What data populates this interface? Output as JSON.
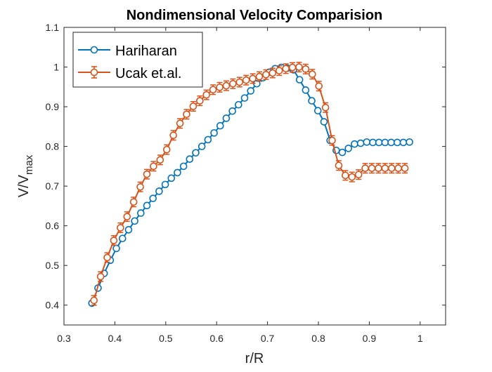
{
  "chart_data": {
    "type": "line",
    "title": "Nondimensional Velocity Comparision",
    "xlabel": "r/R",
    "ylabel_main": "V/V",
    "ylabel_sub": "max",
    "xlim": [
      0.3,
      1.05
    ],
    "ylim": [
      0.35,
      1.1
    ],
    "xticks": [
      0.3,
      0.4,
      0.5,
      0.6,
      0.7,
      0.8,
      0.9,
      1
    ],
    "xtick_labels": [
      "0.3",
      "0.4",
      "0.5",
      "0.6",
      "0.7",
      "0.8",
      "0.9",
      "1"
    ],
    "yticks": [
      0.4,
      0.5,
      0.6,
      0.7,
      0.8,
      0.9,
      1,
      1.1
    ],
    "ytick_labels": [
      "0.4",
      "0.5",
      "0.6",
      "0.7",
      "0.8",
      "0.9",
      "1",
      "1.1"
    ],
    "grid": false,
    "legend_position": "top-left",
    "series": [
      {
        "name": "Hariharan",
        "color": "#0072BD",
        "marker": "circle",
        "error_bars": false,
        "x": [
          0.355,
          0.367,
          0.379,
          0.391,
          0.403,
          0.415,
          0.427,
          0.439,
          0.451,
          0.463,
          0.475,
          0.487,
          0.499,
          0.511,
          0.523,
          0.535,
          0.547,
          0.559,
          0.571,
          0.583,
          0.595,
          0.607,
          0.619,
          0.631,
          0.643,
          0.655,
          0.667,
          0.679,
          0.691,
          0.703,
          0.715,
          0.727,
          0.739,
          0.751,
          0.763,
          0.775,
          0.787,
          0.799,
          0.811,
          0.823,
          0.835,
          0.847,
          0.859,
          0.871,
          0.883,
          0.895,
          0.907,
          0.919,
          0.931,
          0.943,
          0.955,
          0.967,
          0.979
        ],
        "y": [
          0.405,
          0.443,
          0.48,
          0.513,
          0.543,
          0.568,
          0.59,
          0.612,
          0.632,
          0.651,
          0.669,
          0.687,
          0.704,
          0.72,
          0.734,
          0.75,
          0.768,
          0.784,
          0.8,
          0.817,
          0.834,
          0.852,
          0.871,
          0.889,
          0.905,
          0.922,
          0.94,
          0.958,
          0.973,
          0.987,
          0.996,
          0.999,
          0.997,
          0.993,
          0.968,
          0.942,
          0.915,
          0.89,
          0.862,
          0.815,
          0.79,
          0.785,
          0.795,
          0.806,
          0.808,
          0.811,
          0.81,
          0.81,
          0.81,
          0.81,
          0.81,
          0.81,
          0.811
        ]
      },
      {
        "name": "Ucak et.al.",
        "color": "#D95319",
        "marker": "circle",
        "error_bars": true,
        "error": 0.012,
        "x": [
          0.359,
          0.372,
          0.385,
          0.398,
          0.411,
          0.424,
          0.437,
          0.45,
          0.463,
          0.476,
          0.489,
          0.502,
          0.515,
          0.528,
          0.541,
          0.554,
          0.567,
          0.58,
          0.593,
          0.606,
          0.619,
          0.632,
          0.645,
          0.658,
          0.671,
          0.684,
          0.697,
          0.71,
          0.723,
          0.736,
          0.749,
          0.762,
          0.775,
          0.788,
          0.801,
          0.814,
          0.827,
          0.84,
          0.853,
          0.866,
          0.879,
          0.892,
          0.905,
          0.918,
          0.931,
          0.944,
          0.957,
          0.97
        ],
        "y": [
          0.412,
          0.472,
          0.52,
          0.563,
          0.595,
          0.623,
          0.66,
          0.698,
          0.73,
          0.75,
          0.766,
          0.792,
          0.828,
          0.858,
          0.881,
          0.901,
          0.915,
          0.93,
          0.943,
          0.949,
          0.953,
          0.958,
          0.962,
          0.967,
          0.971,
          0.976,
          0.981,
          0.985,
          0.991,
          0.996,
          0.999,
          1.0,
          0.995,
          0.982,
          0.952,
          0.898,
          0.815,
          0.752,
          0.727,
          0.723,
          0.729,
          0.745,
          0.745,
          0.745,
          0.745,
          0.745,
          0.745,
          0.745
        ]
      }
    ]
  }
}
